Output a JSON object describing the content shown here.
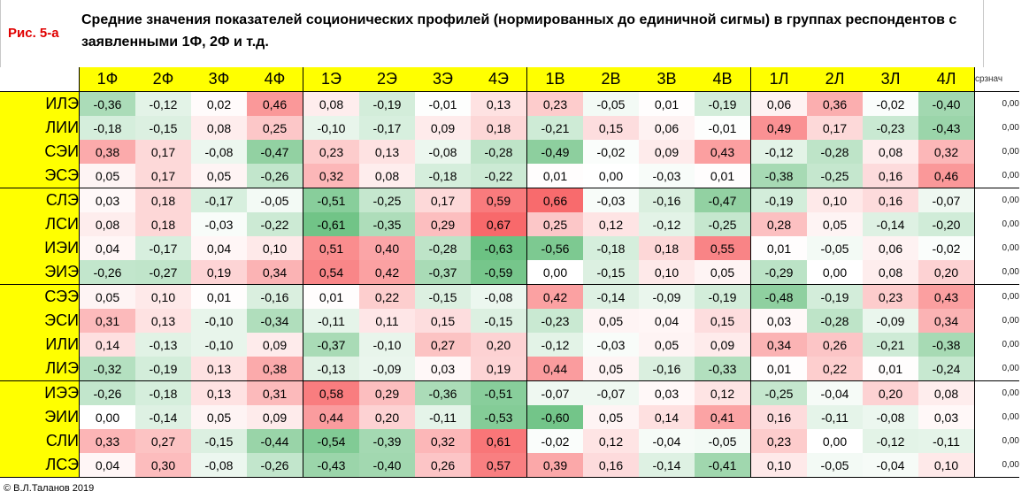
{
  "header": {
    "label": "Рис. 5-а",
    "title": "Средние значения показателей соционических профилей (нормированных до единичной сигмы) в группах респондентов с заявленными 1Ф, 2Ф и т.д."
  },
  "table": {
    "columns": [
      "1Ф",
      "2Ф",
      "3Ф",
      "4Ф",
      "1Э",
      "2Э",
      "3Э",
      "4Э",
      "1В",
      "2В",
      "3В",
      "4В",
      "1Л",
      "2Л",
      "3Л",
      "4Л"
    ],
    "extra_header": "срзнач",
    "rows": [
      {
        "label": "ИЛЭ",
        "values": [
          "-0,36",
          "-0,12",
          "0,02",
          "0,46",
          "0,08",
          "-0,19",
          "-0,01",
          "0,13",
          "0,23",
          "-0,05",
          "0,01",
          "-0,19",
          "0,06",
          "0,36",
          "-0,02",
          "-0,40"
        ],
        "extra": "0,00"
      },
      {
        "label": "ЛИИ",
        "values": [
          "-0,18",
          "-0,15",
          "0,08",
          "0,25",
          "-0,10",
          "-0,17",
          "0,09",
          "0,18",
          "-0,21",
          "0,15",
          "0,06",
          "-0,01",
          "0,49",
          "0,17",
          "-0,23",
          "-0,43"
        ],
        "extra": "0,00"
      },
      {
        "label": "СЭИ",
        "values": [
          "0,38",
          "0,17",
          "-0,08",
          "-0,47",
          "0,23",
          "0,13",
          "-0,08",
          "-0,28",
          "-0,49",
          "-0,02",
          "0,09",
          "0,43",
          "-0,12",
          "-0,28",
          "0,08",
          "0,32"
        ],
        "extra": "0,00"
      },
      {
        "label": "ЭСЭ",
        "values": [
          "0,05",
          "0,17",
          "0,05",
          "-0,26",
          "0,32",
          "0,08",
          "-0,18",
          "-0,22",
          "0,01",
          "0,00",
          "-0,03",
          "0,01",
          "-0,38",
          "-0,25",
          "0,16",
          "0,46"
        ],
        "extra": "0,00"
      },
      {
        "label": "СЛЭ",
        "values": [
          "0,03",
          "0,18",
          "-0,17",
          "-0,05",
          "-0,51",
          "-0,25",
          "0,17",
          "0,59",
          "0,66",
          "-0,03",
          "-0,16",
          "-0,47",
          "-0,19",
          "0,10",
          "0,16",
          "-0,07"
        ],
        "extra": "0,00"
      },
      {
        "label": "ЛСИ",
        "values": [
          "0,08",
          "0,18",
          "-0,03",
          "-0,22",
          "-0,61",
          "-0,35",
          "0,29",
          "0,67",
          "0,25",
          "0,12",
          "-0,12",
          "-0,25",
          "0,28",
          "0,05",
          "-0,14",
          "-0,20"
        ],
        "extra": "0,00"
      },
      {
        "label": "ИЭИ",
        "values": [
          "0,04",
          "-0,17",
          "0,04",
          "0,10",
          "0,51",
          "0,40",
          "-0,28",
          "-0,63",
          "-0,56",
          "-0,18",
          "0,18",
          "0,55",
          "0,01",
          "-0,05",
          "0,06",
          "-0,02"
        ],
        "extra": "0,00"
      },
      {
        "label": "ЭИЭ",
        "values": [
          "-0,26",
          "-0,27",
          "0,19",
          "0,34",
          "0,54",
          "0,42",
          "-0,37",
          "-0,59",
          "0,00",
          "-0,15",
          "0,10",
          "0,05",
          "-0,29",
          "0,00",
          "0,08",
          "0,20"
        ],
        "extra": "0,00"
      },
      {
        "label": "СЭЭ",
        "values": [
          "0,05",
          "0,10",
          "0,01",
          "-0,16",
          "0,01",
          "0,22",
          "-0,15",
          "-0,08",
          "0,42",
          "-0,14",
          "-0,09",
          "-0,19",
          "-0,48",
          "-0,19",
          "0,23",
          "0,43"
        ],
        "extra": "0,00"
      },
      {
        "label": "ЭСИ",
        "values": [
          "0,31",
          "0,13",
          "-0,10",
          "-0,34",
          "-0,11",
          "0,11",
          "0,15",
          "-0,15",
          "-0,23",
          "0,05",
          "0,04",
          "0,15",
          "0,03",
          "-0,28",
          "-0,09",
          "0,34"
        ],
        "extra": "0,00"
      },
      {
        "label": "ИЛИ",
        "values": [
          "0,14",
          "-0,13",
          "-0,10",
          "0,09",
          "-0,37",
          "-0,10",
          "0,27",
          "0,20",
          "-0,12",
          "-0,03",
          "0,05",
          "0,09",
          "0,34",
          "0,26",
          "-0,21",
          "-0,38"
        ],
        "extra": "0,00"
      },
      {
        "label": "ЛИЭ",
        "values": [
          "-0,32",
          "-0,19",
          "0,13",
          "0,38",
          "-0,13",
          "-0,09",
          "0,03",
          "0,19",
          "0,44",
          "0,05",
          "-0,16",
          "-0,33",
          "0,01",
          "0,22",
          "0,01",
          "-0,24"
        ],
        "extra": "0,00"
      },
      {
        "label": "ИЭЭ",
        "values": [
          "-0,26",
          "-0,18",
          "0,13",
          "0,31",
          "0,58",
          "0,29",
          "-0,36",
          "-0,51",
          "-0,07",
          "-0,07",
          "0,03",
          "0,12",
          "-0,25",
          "-0,04",
          "0,20",
          "0,08"
        ],
        "extra": "0,00"
      },
      {
        "label": "ЭИИ",
        "values": [
          "0,00",
          "-0,14",
          "0,05",
          "0,09",
          "0,44",
          "0,20",
          "-0,11",
          "-0,53",
          "-0,60",
          "0,05",
          "0,14",
          "0,41",
          "0,16",
          "-0,11",
          "-0,08",
          "0,03"
        ],
        "extra": "0,00"
      },
      {
        "label": "СЛИ",
        "values": [
          "0,33",
          "0,27",
          "-0,15",
          "-0,44",
          "-0,54",
          "-0,39",
          "0,32",
          "0,61",
          "-0,02",
          "0,12",
          "-0,04",
          "-0,05",
          "0,23",
          "0,00",
          "-0,12",
          "-0,11"
        ],
        "extra": "0,00"
      },
      {
        "label": "ЛСЭ",
        "values": [
          "0,04",
          "0,30",
          "-0,08",
          "-0,26",
          "-0,43",
          "-0,40",
          "0,26",
          "0,57",
          "0,39",
          "0,16",
          "-0,14",
          "-0,41",
          "0,10",
          "-0,05",
          "-0,04",
          "0,10"
        ],
        "extra": "0,00"
      }
    ]
  },
  "colors": {
    "positive": "#f8696b",
    "negative": "#63be7b",
    "neutral": "#ffffff",
    "header_fill": "#ffff00",
    "label_red": "#e00000"
  },
  "footer": {
    "copyright": "© В.Л.Таланов 2019"
  }
}
